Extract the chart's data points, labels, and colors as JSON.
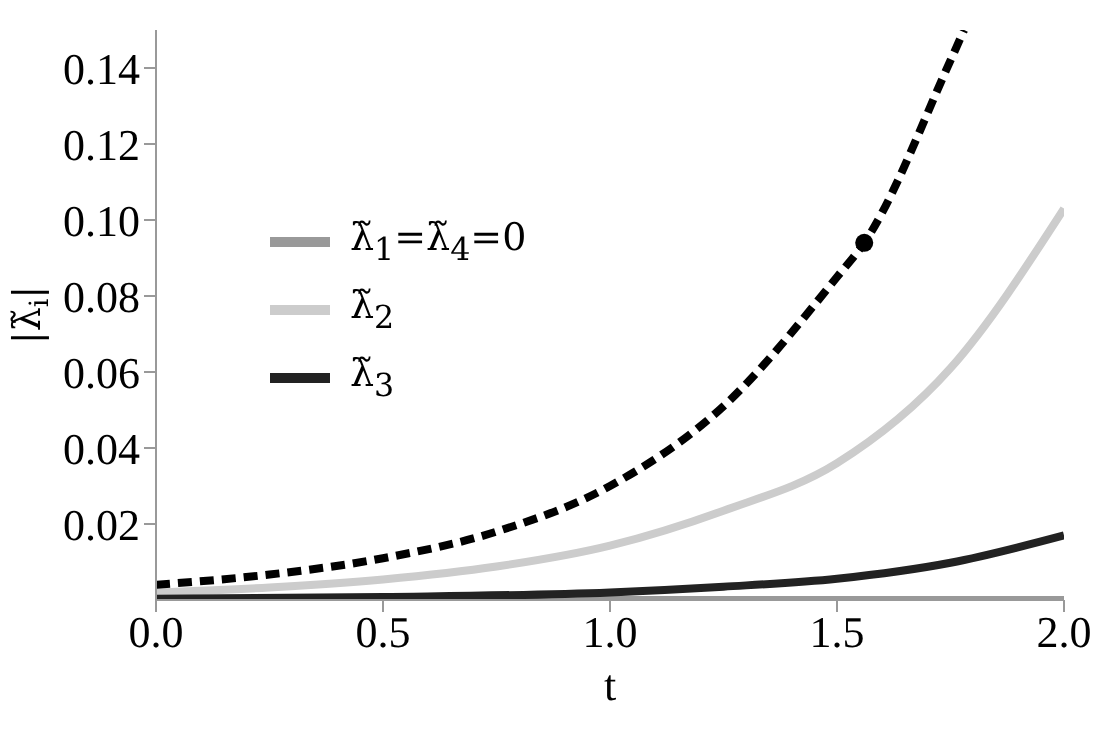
{
  "chart_data": {
    "type": "line",
    "xlabel": "t",
    "ylabel": "|λ̃$_{i}$|",
    "xlim": [
      0,
      2
    ],
    "ylim": [
      0,
      0.15
    ],
    "xticks": [
      {
        "value": 0,
        "label": "0.0"
      },
      {
        "value": 0.5,
        "label": "0.5"
      },
      {
        "value": 1,
        "label": "1.0"
      },
      {
        "value": 1.5,
        "label": "1.5"
      },
      {
        "value": 2,
        "label": "2.0"
      }
    ],
    "yticks": [
      0.02,
      0.04,
      0.06,
      0.08,
      {
        "value": 0.1,
        "label": "0.10"
      },
      0.12,
      0.14
    ],
    "legend": "left",
    "marker": "none",
    "series": [
      {
        "name": "λ̃$_{1}$=λ̃$_{4}$=0",
        "color": "#999999",
        "line_style": "solid",
        "x": [
          0,
          2
        ],
        "values": [
          0,
          0
        ]
      },
      {
        "name": "λ̃$_{2}$",
        "color": "#cccccc",
        "line_style": "solid",
        "x": [
          0,
          0.25,
          0.5,
          0.75,
          1.0,
          1.25,
          1.5,
          1.75,
          2.0
        ],
        "values": [
          0.002,
          0.0033,
          0.0054,
          0.0088,
          0.0143,
          0.0235,
          0.036,
          0.061,
          0.103
        ]
      },
      {
        "name": "λ̃$_{3}$",
        "color": "#222222",
        "line_style": "solid",
        "x": [
          0,
          0.5,
          1.0,
          1.25,
          1.5,
          1.75,
          2.0
        ],
        "values": [
          0.0003,
          0.0008,
          0.002,
          0.0035,
          0.0056,
          0.0098,
          0.017
        ]
      },
      {
        "color": "#000000",
        "line_style": "dashed",
        "x": [
          0,
          0.25,
          0.5,
          0.75,
          1.0,
          1.25,
          1.5,
          1.56,
          1.75,
          1.78
        ],
        "values": [
          0.004,
          0.0067,
          0.011,
          0.018,
          0.03,
          0.051,
          0.085,
          0.094,
          0.142,
          0.15
        ]
      },
      {
        "type": "scatter",
        "color": "#000000",
        "marker": "circle",
        "x": [
          1.56
        ],
        "values": [
          0.094
        ]
      }
    ]
  }
}
